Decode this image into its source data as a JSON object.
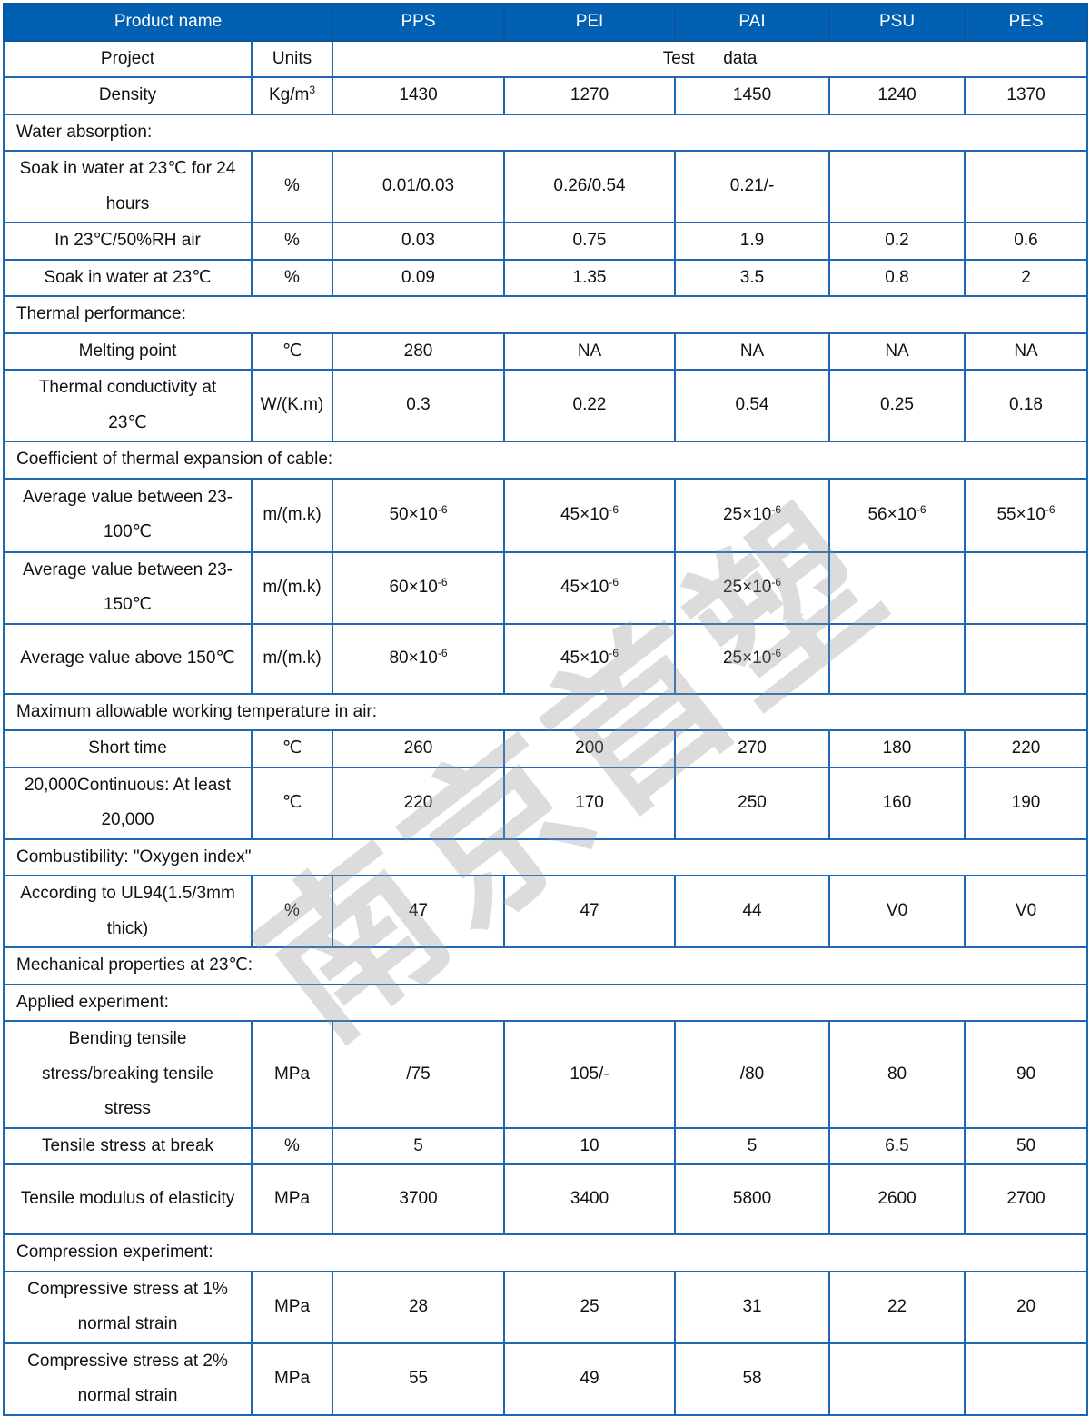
{
  "header": {
    "product_label": "Product name",
    "products": [
      "PPS",
      "PEI",
      "PAI",
      "PSU",
      "PES"
    ]
  },
  "subheader": {
    "project": "Project",
    "units": "Units",
    "test_data": "Test      data"
  },
  "watermark": "南京首塑",
  "colors": {
    "header_bg": "#0160b2",
    "border": "#1f67b1",
    "watermark": "#c8c8c8"
  },
  "rows": [
    {
      "type": "data",
      "label": "Density",
      "unit": {
        "base": "Kg/m",
        "sup": "3"
      },
      "values": [
        "1430",
        "1270",
        "1450",
        "1240",
        "1370"
      ]
    },
    {
      "type": "section",
      "label": "Water absorption:"
    },
    {
      "type": "data",
      "label": "Soak in water at 23℃ for 24 hours",
      "unit": "%",
      "values": [
        "0.01/0.03",
        "0.26/0.54",
        "0.21/-",
        "",
        ""
      ]
    },
    {
      "type": "data",
      "label": "In 23℃/50%RH air",
      "unit": "%",
      "values": [
        "0.03",
        "0.75",
        "1.9",
        "0.2",
        "0.6"
      ]
    },
    {
      "type": "data",
      "label": "Soak in water at 23℃",
      "unit": "%",
      "values": [
        "0.09",
        "1.35",
        "3.5",
        "0.8",
        "2"
      ]
    },
    {
      "type": "section",
      "label": "Thermal performance:"
    },
    {
      "type": "data",
      "label": "Melting point",
      "unit": "℃",
      "values": [
        "280",
        "NA",
        "NA",
        "NA",
        "NA"
      ]
    },
    {
      "type": "data",
      "label": "Thermal conductivity at 23℃",
      "unit": "W/(K.m)",
      "values": [
        "0.3",
        "0.22",
        "0.54",
        "0.25",
        "0.18"
      ]
    },
    {
      "type": "section",
      "label": "Coefficient of thermal expansion of cable:"
    },
    {
      "type": "data",
      "label": "Average value between 23-100℃",
      "unit": "m/(m.k)",
      "values": [
        {
          "base": "50×10",
          "sup": "-6"
        },
        {
          "base": "45×10",
          "sup": "-6"
        },
        {
          "base": "25×10",
          "sup": "-6"
        },
        {
          "base": "56×10",
          "sup": "-6"
        },
        {
          "base": "55×10",
          "sup": "-6"
        }
      ]
    },
    {
      "type": "data",
      "label": "Average value between 23-150℃",
      "unit": "m/(m.k)",
      "values": [
        {
          "base": "60×10",
          "sup": "-6"
        },
        {
          "base": "45×10",
          "sup": "-6"
        },
        {
          "base": "25×10",
          "sup": "-6"
        },
        "",
        ""
      ]
    },
    {
      "type": "data",
      "label": "Average value above 150℃",
      "unit": "m/(m.k)",
      "values": [
        {
          "base": "80×10",
          "sup": "-6"
        },
        {
          "base": "45×10",
          "sup": "-6"
        },
        {
          "base": "25×10",
          "sup": "-6"
        },
        "",
        ""
      ]
    },
    {
      "type": "section",
      "label": "Maximum allowable working temperature in air:"
    },
    {
      "type": "data",
      "label": "Short time",
      "unit": "℃",
      "values": [
        "260",
        "200",
        "270",
        "180",
        "220"
      ]
    },
    {
      "type": "data",
      "label": "20,000Continuous: At least 20,000",
      "unit": "℃",
      "values": [
        "220",
        "170",
        "250",
        "160",
        "190"
      ]
    },
    {
      "type": "section",
      "label": "Combustibility: \"Oxygen index\""
    },
    {
      "type": "data",
      "label": "According to UL94(1.5/3mm thick)",
      "unit": "%",
      "values": [
        "47",
        "47",
        "44",
        "V0",
        "V0"
      ]
    },
    {
      "type": "section",
      "label": "Mechanical properties at 23℃:"
    },
    {
      "type": "section",
      "label": "Applied experiment:"
    },
    {
      "type": "data",
      "label": "Bending tensile stress/breaking tensile stress",
      "unit": "MPa",
      "values": [
        "/75",
        "105/-",
        "/80",
        "80",
        "90"
      ]
    },
    {
      "type": "data",
      "label": "Tensile stress at break",
      "unit": "%",
      "values": [
        "5",
        "10",
        "5",
        "6.5",
        "50"
      ]
    },
    {
      "type": "data",
      "label": "Tensile modulus of elasticity",
      "unit": "MPa",
      "values": [
        "3700",
        "3400",
        "5800",
        "2600",
        "2700"
      ]
    },
    {
      "type": "section",
      "label": "Compression experiment:"
    },
    {
      "type": "data",
      "label": "Compressive stress at 1% normal strain",
      "unit": "MPa",
      "values": [
        "28",
        "25",
        "31",
        "22",
        "20"
      ]
    },
    {
      "type": "data",
      "label": "Compressive stress at 2% normal strain",
      "unit": "MPa",
      "values": [
        "55",
        "49",
        "58",
        "",
        ""
      ]
    }
  ]
}
